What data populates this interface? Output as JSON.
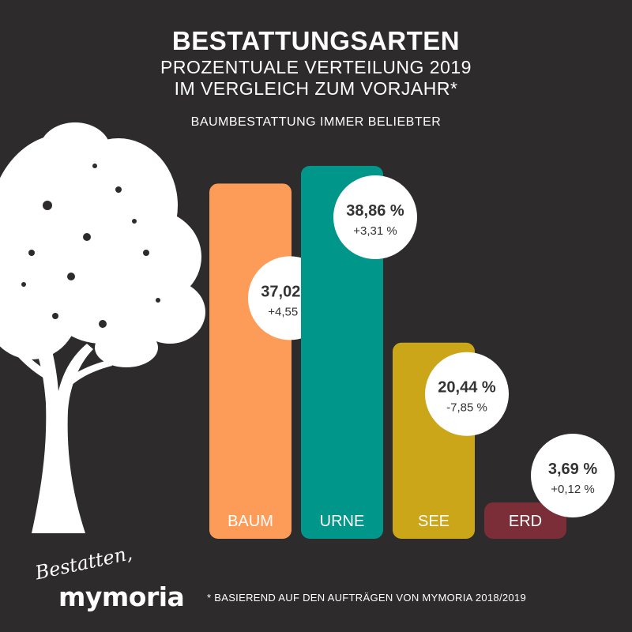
{
  "header": {
    "title": "BESTATTUNGSARTEN",
    "subtitle_line1": "PROZENTUALE VERTEILUNG 2019",
    "subtitle_line2": "IM VERGLEICH ZUM VORJAHR*",
    "tagline": "BAUMBESTATTUNG IMMER BELIEBTER"
  },
  "footer": {
    "footnote": "* BASIEREND AUF DEN AUFTRÄGEN VON MYMORIA 2018/2019",
    "logo_script": "Bestatten,",
    "logo_brand": "mymoria"
  },
  "colors": {
    "background": "#2d2b2c",
    "baum": "#fd9c58",
    "urne": "#00978a",
    "see": "#cba619",
    "erd": "#7b2e37",
    "label_circle": "#ffffff",
    "label_text": "#333333"
  },
  "chart_data": {
    "type": "bar",
    "title": "BESTATTUNGSARTEN",
    "categories": [
      "BAUM",
      "URNE",
      "SEE",
      "ERD"
    ],
    "values": [
      37.02,
      38.86,
      20.44,
      3.69
    ],
    "changes": [
      4.55,
      3.31,
      -7.85,
      0.12
    ],
    "value_labels": [
      "37,02 %",
      "38,86 %",
      "20,44 %",
      "3,69 %"
    ],
    "change_labels": [
      "+4,55 %",
      "+3,31 %",
      "-7,85 %",
      "+0,12 %"
    ],
    "colors": [
      "#fd9c58",
      "#00978a",
      "#cba619",
      "#7b2e37"
    ],
    "ylim": [
      0,
      40
    ],
    "grid": false,
    "legend": "none"
  }
}
